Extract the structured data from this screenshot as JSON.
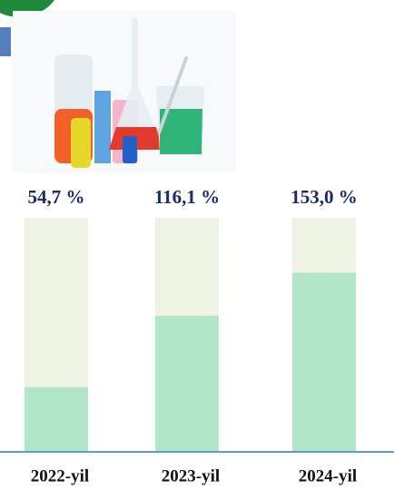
{
  "chart_data": {
    "type": "bar",
    "categories": [
      "2022-yil",
      "2023-yil",
      "2024-yil"
    ],
    "values": [
      54.7,
      116.1,
      153.0
    ],
    "value_labels": [
      "54,7 %",
      "116,1 %",
      "153,0 %"
    ],
    "color": "#b3e6c9",
    "track_color": "#eef3e4",
    "ylim": [
      0,
      200
    ]
  }
}
